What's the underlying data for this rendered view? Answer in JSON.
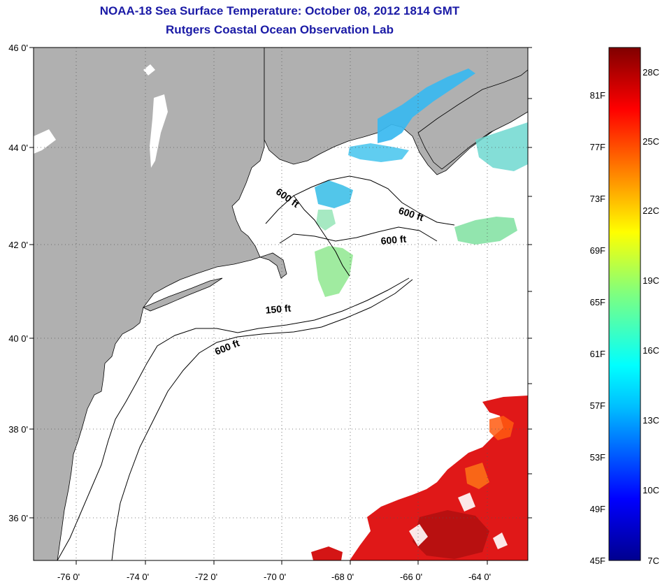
{
  "title": "NOAA-18 Sea Surface Temperature:  October 08, 2012 1814 GMT",
  "subtitle": "Rutgers Coastal Ocean Observation Lab",
  "map": {
    "lon_range": [
      -77,
      -63
    ],
    "lat_range": [
      35,
      46
    ],
    "lat_ticks": [
      {
        "value": 46,
        "label": "46 0'"
      },
      {
        "value": 44,
        "label": "44 0'"
      },
      {
        "value": 42,
        "label": "42 0'"
      },
      {
        "value": 40,
        "label": "40 0'"
      },
      {
        "value": 38,
        "label": "38 0'"
      },
      {
        "value": 36,
        "label": "36 0'"
      }
    ],
    "lon_ticks": [
      {
        "value": -76,
        "label": "-76 0'"
      },
      {
        "value": -74,
        "label": "-74 0'"
      },
      {
        "value": -72,
        "label": "-72 0'"
      },
      {
        "value": -70,
        "label": "-70 0'"
      },
      {
        "value": -68,
        "label": "-68 0'"
      },
      {
        "value": -66,
        "label": "-66 0'"
      },
      {
        "value": -64,
        "label": "-64 0'"
      }
    ],
    "land_color": "#b0b0b0",
    "grid": true,
    "contour_labels": [
      {
        "text": "600 ft"
      },
      {
        "text": "600 ft"
      },
      {
        "text": "600 ft"
      },
      {
        "text": "150 ft"
      },
      {
        "text": "600 ft"
      }
    ]
  },
  "colorbar": {
    "fahrenheit_labels": [
      "81F",
      "77F",
      "73F",
      "69F",
      "65F",
      "61F",
      "57F",
      "53F",
      "49F",
      "45F"
    ],
    "celsius_labels": [
      "28C",
      "25C",
      "22C",
      "19C",
      "16C",
      "13C",
      "10C",
      "7C"
    ],
    "colors": [
      "#00008f",
      "#0000ff",
      "#00bfff",
      "#00ffff",
      "#7fff7f",
      "#ffff00",
      "#ff7f00",
      "#ff0000",
      "#800000"
    ]
  }
}
